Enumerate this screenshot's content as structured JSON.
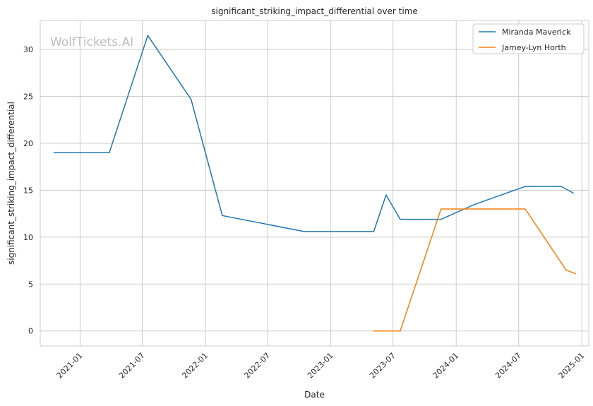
{
  "chart_data": {
    "type": "line",
    "title": "significant_striking_impact_differential over time",
    "xlabel": "Date",
    "ylabel": "significant_striking_impact_differential",
    "watermark": "WolfTickets.AI",
    "x_ticks": [
      "2021-01",
      "2021-07",
      "2022-01",
      "2022-07",
      "2023-01",
      "2023-07",
      "2024-01",
      "2024-07",
      "2025-01"
    ],
    "y_ticks": [
      0,
      5,
      10,
      15,
      20,
      25,
      30
    ],
    "xlim": [
      "2020-09-07",
      "2025-01-21"
    ],
    "ylim": [
      -1.6,
      33.1
    ],
    "grid": true,
    "legend_position": "top-right",
    "series": [
      {
        "name": "Miranda Maverick",
        "color": "#1f77b4",
        "points": [
          {
            "x": "2020-10-17",
            "y": 19.0
          },
          {
            "x": "2021-03-27",
            "y": 19.0
          },
          {
            "x": "2021-07-17",
            "y": 31.5
          },
          {
            "x": "2021-11-20",
            "y": 24.7
          },
          {
            "x": "2022-02-19",
            "y": 12.3
          },
          {
            "x": "2022-10-15",
            "y": 10.6
          },
          {
            "x": "2023-05-06",
            "y": 10.6
          },
          {
            "x": "2023-06-11",
            "y": 14.5
          },
          {
            "x": "2023-07-22",
            "y": 11.9
          },
          {
            "x": "2023-11-18",
            "y": 11.9
          },
          {
            "x": "2024-02-24",
            "y": 13.5
          },
          {
            "x": "2024-07-20",
            "y": 15.4
          },
          {
            "x": "2024-11-02",
            "y": 15.4
          },
          {
            "x": "2024-12-07",
            "y": 14.7
          }
        ]
      },
      {
        "name": "Jamey-Lyn Horth",
        "color": "#ff7f0e",
        "points": [
          {
            "x": "2023-05-06",
            "y": 0.0
          },
          {
            "x": "2023-07-22",
            "y": 0.0
          },
          {
            "x": "2023-11-18",
            "y": 13.0
          },
          {
            "x": "2024-07-20",
            "y": 13.0
          },
          {
            "x": "2024-11-16",
            "y": 6.5
          },
          {
            "x": "2024-12-14",
            "y": 6.1
          }
        ]
      }
    ]
  }
}
